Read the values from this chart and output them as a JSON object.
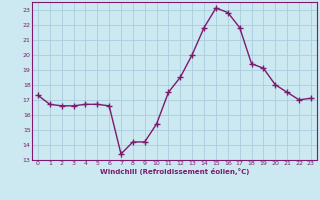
{
  "x": [
    0,
    1,
    2,
    3,
    4,
    5,
    6,
    7,
    8,
    9,
    10,
    11,
    12,
    13,
    14,
    15,
    16,
    17,
    18,
    19,
    20,
    21,
    22,
    23
  ],
  "y": [
    17.3,
    16.7,
    16.6,
    16.6,
    16.7,
    16.7,
    16.6,
    13.4,
    14.2,
    14.2,
    15.4,
    17.5,
    18.5,
    20.0,
    21.8,
    23.1,
    22.8,
    21.8,
    19.4,
    19.1,
    18.0,
    17.5,
    17.0,
    17.1
  ],
  "line_color": "#7b1a6e",
  "marker": "+",
  "marker_size": 4,
  "linewidth": 1.0,
  "bg_color": "#cce8f0",
  "grid_color": "#aaccdd",
  "xlabel": "Windchill (Refroidissement éolien,°C)",
  "xlabel_color": "#7b1a6e",
  "tick_color": "#7b1a6e",
  "ylim": [
    13,
    23.5
  ],
  "yticks": [
    13,
    14,
    15,
    16,
    17,
    18,
    19,
    20,
    21,
    22,
    23
  ],
  "xticks": [
    0,
    1,
    2,
    3,
    4,
    5,
    6,
    7,
    8,
    9,
    10,
    11,
    12,
    13,
    14,
    15,
    16,
    17,
    18,
    19,
    20,
    21,
    22,
    23
  ]
}
